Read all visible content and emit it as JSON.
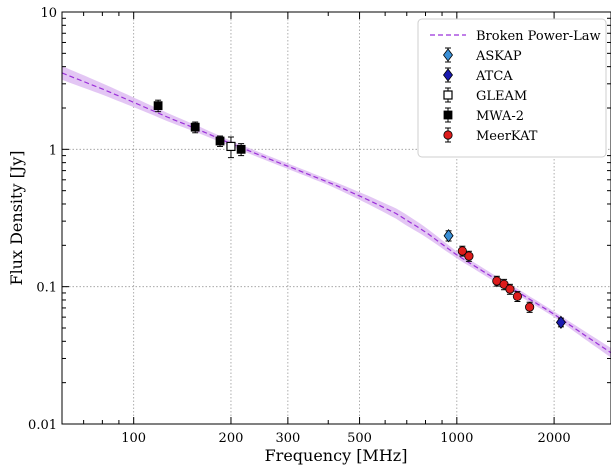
{
  "chart_data": {
    "type": "scatter",
    "xlabel": "Frequency [MHz]",
    "ylabel": "Flux Density [Jy]",
    "xscale": "log",
    "yscale": "log",
    "xlim": [
      60,
      3000
    ],
    "ylim": [
      0.01,
      10
    ],
    "x_ticks": [
      100,
      200,
      300,
      500,
      1000,
      2000
    ],
    "x_tick_labels": [
      "100",
      "200",
      "300",
      "500",
      "1000",
      "2000"
    ],
    "y_ticks": [
      0.01,
      0.1,
      1,
      10
    ],
    "y_tick_labels": [
      "0.01",
      "0.1",
      "1",
      "10"
    ],
    "grid": "dotted",
    "legend_position": "top-right",
    "model": {
      "name": "Broken Power-Law",
      "color": "#9b30d9",
      "band_color": "#d9b3f0",
      "x": [
        60,
        80,
        100,
        130,
        160,
        200,
        260,
        330,
        420,
        530,
        650,
        800,
        1000,
        1300,
        1600,
        2000,
        2500,
        3000
      ],
      "y": [
        3.6,
        2.75,
        2.2,
        1.68,
        1.38,
        1.1,
        0.86,
        0.69,
        0.55,
        0.43,
        0.34,
        0.25,
        0.17,
        0.116,
        0.087,
        0.063,
        0.044,
        0.033
      ],
      "band_halfwidth_x": [
        60,
        100,
        200,
        400,
        700,
        1000,
        2000,
        3000
      ],
      "band_halfwidth_dex": [
        0.05,
        0.035,
        0.02,
        0.02,
        0.04,
        0.025,
        0.02,
        0.035
      ]
    },
    "series": [
      {
        "name": "ASKAP",
        "color": "#3a8fd6",
        "marker": "diamond",
        "points": [
          {
            "x": 943,
            "y": 0.235,
            "err": 0.02
          }
        ]
      },
      {
        "name": "ATCA",
        "color": "#1a1ab0",
        "marker": "diamond",
        "points": [
          {
            "x": 2100,
            "y": 0.055,
            "err": 0.004
          }
        ]
      },
      {
        "name": "GLEAM",
        "color": "#ffffff",
        "marker": "square-open",
        "points": [
          {
            "x": 200,
            "y": 1.05,
            "err": 0.18
          }
        ]
      },
      {
        "name": "MWA-2",
        "color": "#000000",
        "marker": "square",
        "points": [
          {
            "x": 119,
            "y": 2.08,
            "err": 0.2
          },
          {
            "x": 155,
            "y": 1.45,
            "err": 0.13
          },
          {
            "x": 185,
            "y": 1.15,
            "err": 0.1
          },
          {
            "x": 215,
            "y": 1.0,
            "err": 0.1
          }
        ]
      },
      {
        "name": "MeerKAT",
        "color": "#dd1c1c",
        "marker": "circle",
        "points": [
          {
            "x": 1040,
            "y": 0.182,
            "err": 0.015
          },
          {
            "x": 1090,
            "y": 0.167,
            "err": 0.014
          },
          {
            "x": 1330,
            "y": 0.11,
            "err": 0.009
          },
          {
            "x": 1400,
            "y": 0.104,
            "err": 0.009
          },
          {
            "x": 1460,
            "y": 0.096,
            "err": 0.008
          },
          {
            "x": 1540,
            "y": 0.085,
            "err": 0.007
          },
          {
            "x": 1680,
            "y": 0.071,
            "err": 0.006
          }
        ]
      }
    ]
  }
}
